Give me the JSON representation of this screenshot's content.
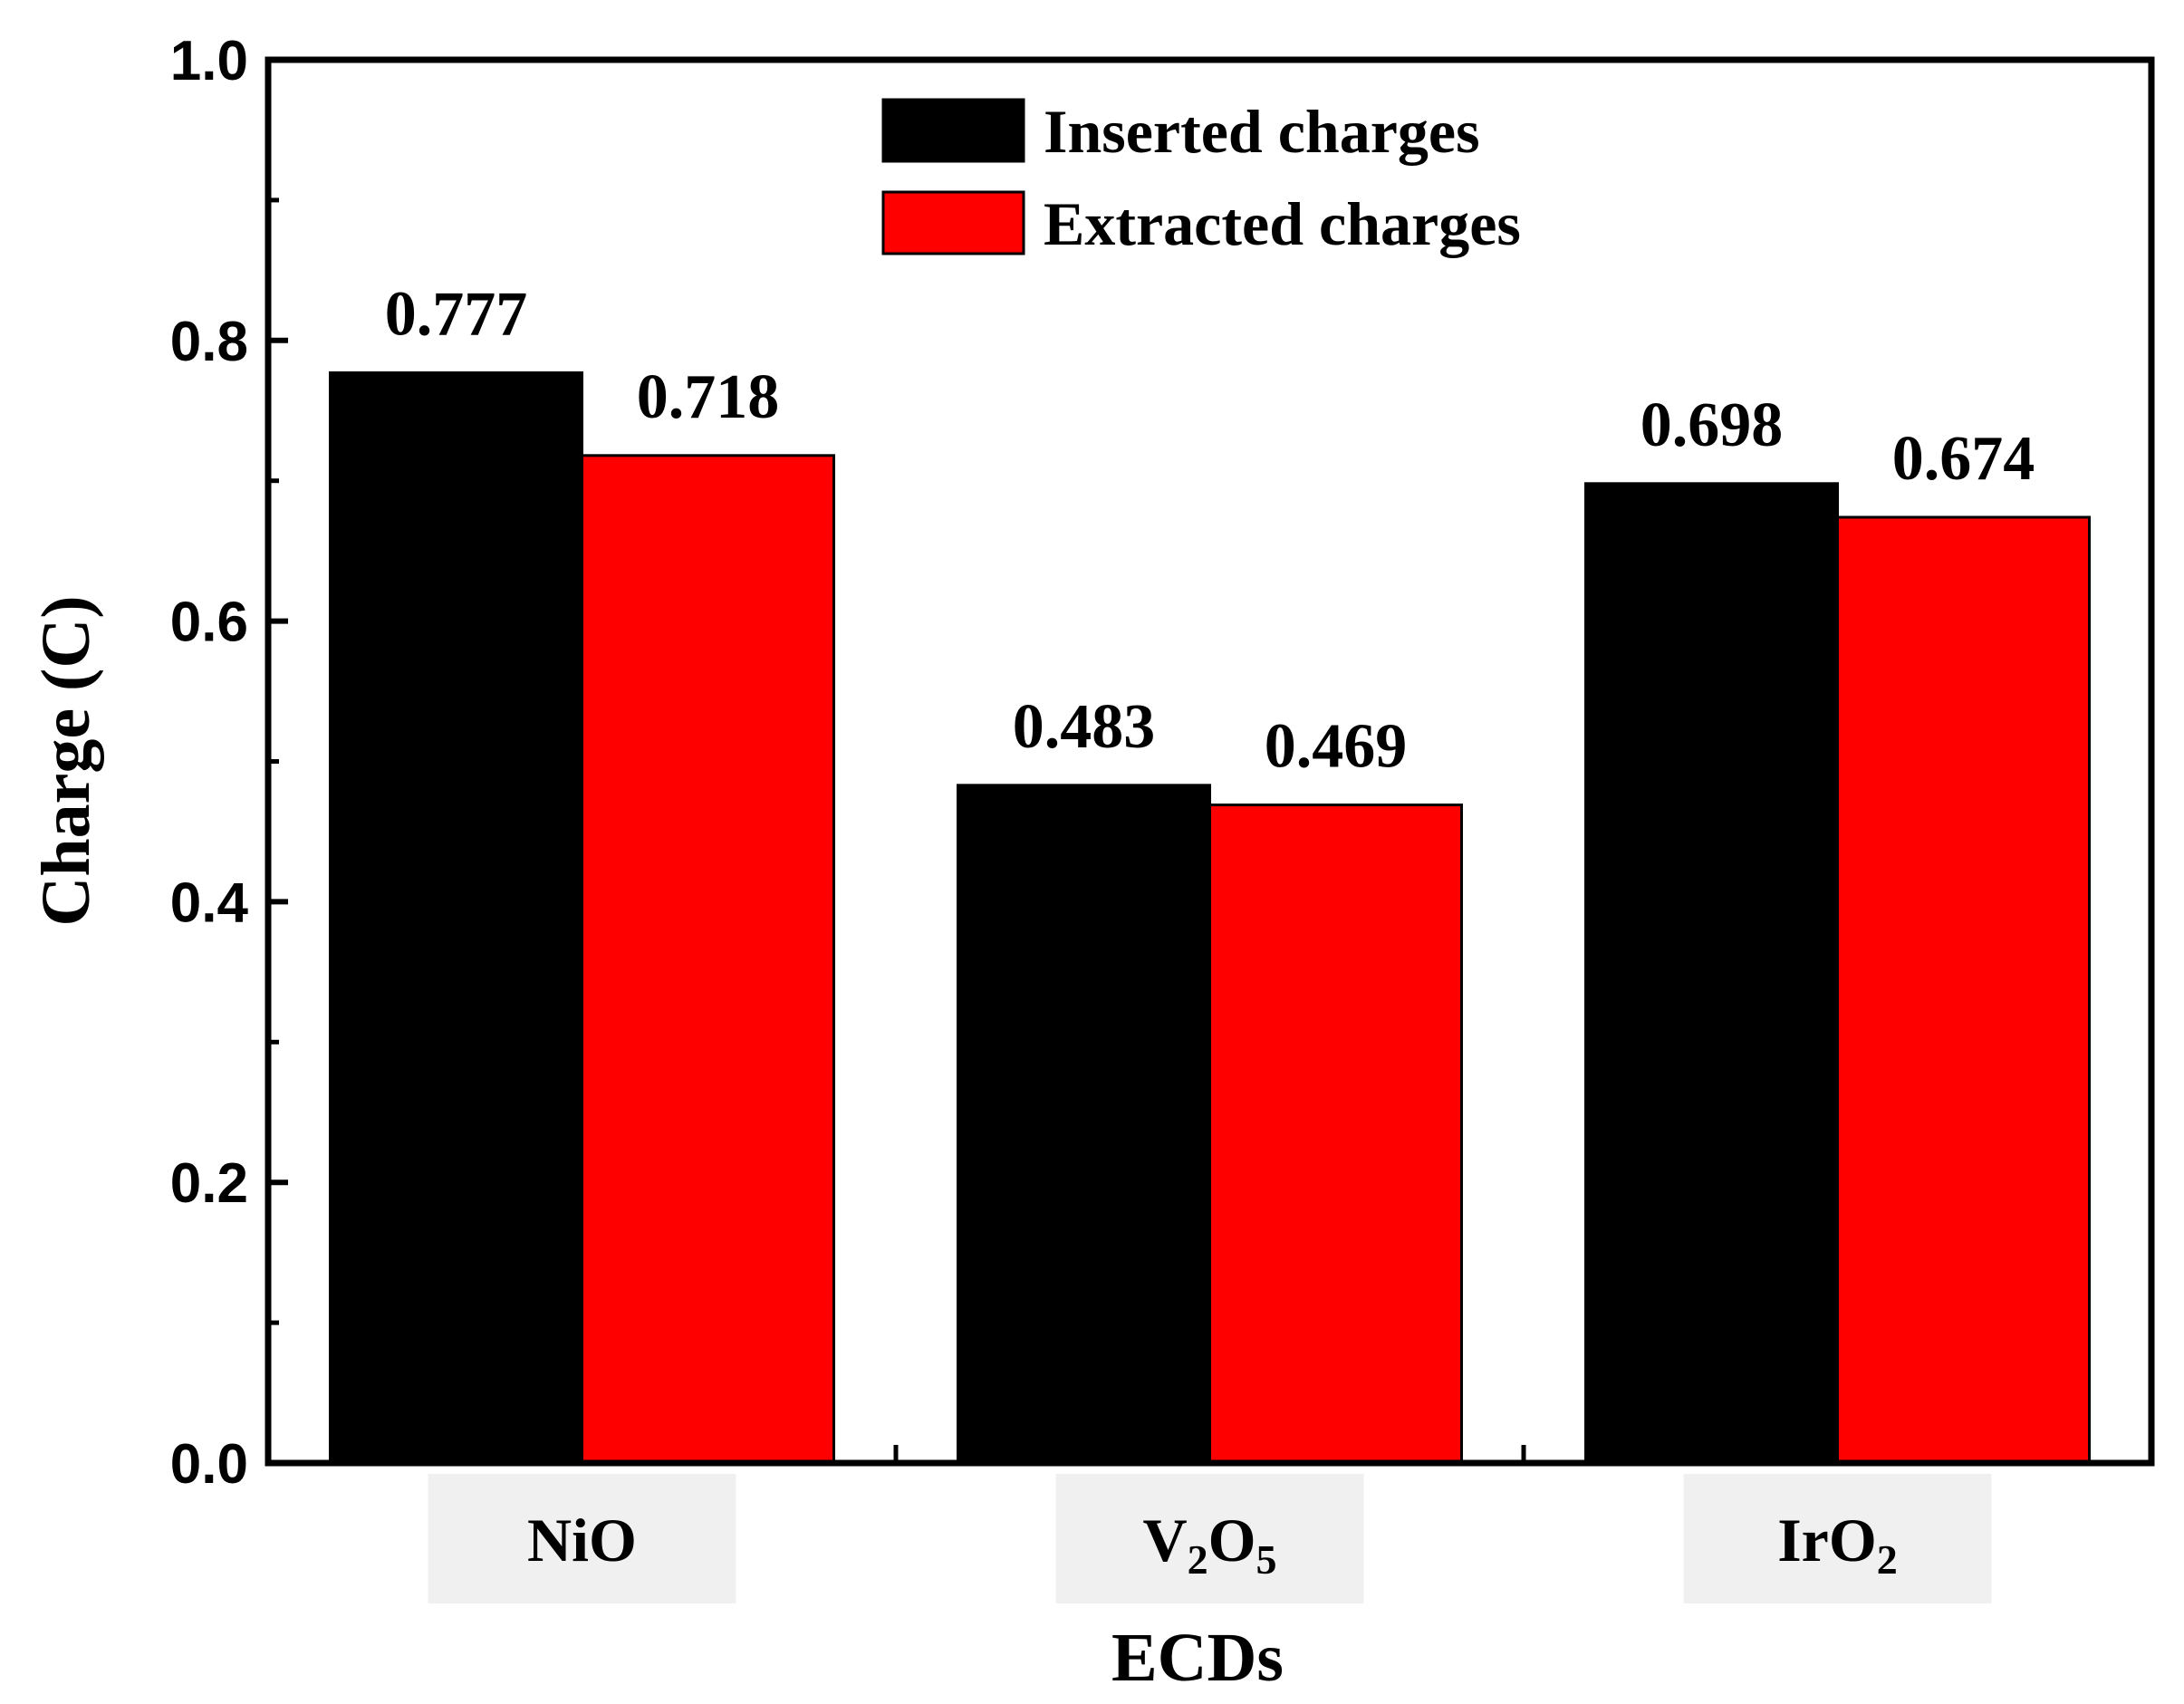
{
  "chart_data": {
    "type": "bar",
    "title": "",
    "xlabel": "ECDs",
    "ylabel": "Charge (C)",
    "ylim": [
      0.0,
      1.0
    ],
    "yticks": [
      "0.0",
      "0.2",
      "0.4",
      "0.6",
      "0.8",
      "1.0"
    ],
    "grid": false,
    "legend_position": "top-center",
    "categories": [
      {
        "base": "NiO",
        "parts": [
          {
            "t": "NiO",
            "sub": false
          }
        ]
      },
      {
        "base": "V2O5",
        "parts": [
          {
            "t": "V",
            "sub": false
          },
          {
            "t": "2",
            "sub": true
          },
          {
            "t": "O",
            "sub": false
          },
          {
            "t": "5",
            "sub": true
          }
        ]
      },
      {
        "base": "IrO2",
        "parts": [
          {
            "t": "IrO",
            "sub": false
          },
          {
            "t": "2",
            "sub": true
          }
        ]
      }
    ],
    "series": [
      {
        "name": "Inserted charges",
        "color": "#000000",
        "values": [
          0.777,
          0.483,
          0.698
        ],
        "labels": [
          "0.777",
          "0.483",
          "0.698"
        ]
      },
      {
        "name": "Extracted charges",
        "color": "#ff0000",
        "values": [
          0.718,
          0.469,
          0.674
        ],
        "labels": [
          "0.718",
          "0.469",
          "0.674"
        ]
      }
    ]
  }
}
